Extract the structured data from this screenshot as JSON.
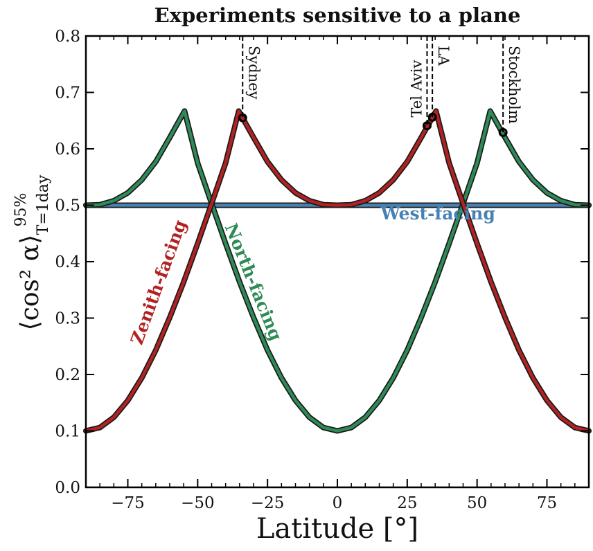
{
  "chart_data": {
    "type": "line",
    "title": "Experiments sensitive to a plane",
    "xlabel": "Latitude [°]",
    "ylabel_main": "⟨cos² α⟩",
    "ylabel_sup": "95%",
    "ylabel_sub": "T=1day",
    "xlim": [
      -90,
      90
    ],
    "ylim": [
      0.0,
      0.8
    ],
    "x_ticks": [
      -75,
      -50,
      -25,
      0,
      25,
      50,
      75
    ],
    "x_tick_labels": [
      "−75",
      "−50",
      "−25",
      "0",
      "25",
      "50",
      "75"
    ],
    "y_ticks": [
      0.0,
      0.1,
      0.2,
      0.3,
      0.4,
      0.5,
      0.6,
      0.7,
      0.8
    ],
    "y_tick_labels": [
      "0.0",
      "0.1",
      "0.2",
      "0.3",
      "0.4",
      "0.5",
      "0.6",
      "0.7",
      "0.8"
    ],
    "grid": false,
    "series": [
      {
        "name": "Zenith-facing",
        "color": "#b22222",
        "x": [
          -90,
          -85,
          -80,
          -75,
          -70,
          -65,
          -60,
          -55,
          -50,
          -45,
          -40,
          -35.3,
          -30,
          -25,
          -20,
          -15,
          -10,
          -5,
          0,
          5,
          10,
          15,
          20,
          25,
          30,
          35.3,
          40,
          45,
          50,
          55,
          60,
          65,
          70,
          75,
          80,
          85,
          90
        ],
        "y": [
          0.1,
          0.106,
          0.124,
          0.154,
          0.194,
          0.243,
          0.301,
          0.364,
          0.432,
          0.503,
          0.575,
          0.667,
          0.62,
          0.577,
          0.545,
          0.522,
          0.508,
          0.501,
          0.5,
          0.501,
          0.508,
          0.522,
          0.545,
          0.577,
          0.62,
          0.667,
          0.575,
          0.503,
          0.432,
          0.364,
          0.301,
          0.243,
          0.194,
          0.154,
          0.124,
          0.106,
          0.1
        ]
      },
      {
        "name": "North-facing",
        "color": "#2e8b57",
        "x": [
          -90,
          -85,
          -80,
          -75,
          -70,
          -65,
          -60,
          -54.7,
          -50,
          -45,
          -40,
          -35,
          -30,
          -25,
          -20,
          -15,
          -10,
          -5,
          0,
          5,
          10,
          15,
          20,
          25,
          30,
          35,
          40,
          45,
          50,
          54.7,
          60,
          65,
          70,
          75,
          80,
          85,
          90
        ],
        "y": [
          0.5,
          0.501,
          0.508,
          0.522,
          0.545,
          0.577,
          0.62,
          0.667,
          0.575,
          0.503,
          0.432,
          0.364,
          0.301,
          0.243,
          0.194,
          0.154,
          0.124,
          0.106,
          0.1,
          0.106,
          0.124,
          0.154,
          0.194,
          0.243,
          0.301,
          0.364,
          0.432,
          0.503,
          0.575,
          0.667,
          0.62,
          0.577,
          0.545,
          0.522,
          0.508,
          0.501,
          0.5
        ]
      },
      {
        "name": "West-facing",
        "color": "#4682b4",
        "x": [
          -90,
          90
        ],
        "y": [
          0.5,
          0.5
        ]
      }
    ],
    "series_labels": [
      {
        "name": "Zenith-facing",
        "x": -62,
        "y": 0.36,
        "angle": -70
      },
      {
        "name": "North-facing",
        "x": -32,
        "y": 0.36,
        "angle": 68
      },
      {
        "name": "West-facing",
        "x": 36,
        "y": 0.475,
        "angle": 0
      }
    ],
    "cities": [
      {
        "name": "Sydney",
        "lat": -33.9,
        "value": 0.655,
        "label_side": "right"
      },
      {
        "name": "Tel Aviv",
        "lat": 32.1,
        "value": 0.641,
        "label_side": "left"
      },
      {
        "name": "LA",
        "lat": 34.0,
        "value": 0.656,
        "label_side": "right"
      },
      {
        "name": "Stockholm",
        "lat": 59.3,
        "value": 0.629,
        "label_side": "right"
      }
    ]
  }
}
